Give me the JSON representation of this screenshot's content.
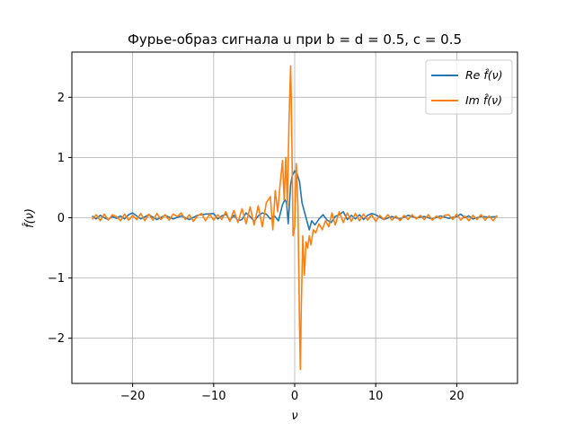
{
  "chart_data": {
    "type": "line",
    "title": "Фурье-образ сигнала u при b = d = 0.5, c = 0.5",
    "xlabel": "ν",
    "ylabel": "f̂(ν)",
    "xlim": [
      -27.5,
      27.5
    ],
    "ylim": [
      -2.75,
      2.75
    ],
    "xticks": [
      -20,
      -10,
      0,
      10,
      20
    ],
    "xtick_labels": [
      "−20",
      "−10",
      "0",
      "10",
      "20"
    ],
    "yticks": [
      -2,
      -1,
      0,
      1,
      2
    ],
    "ytick_labels": [
      "−2",
      "−1",
      "0",
      "1",
      "2"
    ],
    "grid": true,
    "legend_position": "top-right",
    "series": [
      {
        "name": "Re f̂(ν)",
        "color": "#1f77b4",
        "x": [
          -25,
          -24.5,
          -24,
          -23.5,
          -23,
          -22.5,
          -22,
          -21.5,
          -21,
          -20.5,
          -20,
          -19.5,
          -19,
          -18,
          -17,
          -16,
          -15,
          -14,
          -13,
          -12,
          -11,
          -10,
          -9.5,
          -9,
          -8.5,
          -8,
          -7.5,
          -7,
          -6.5,
          -6,
          -5.5,
          -5,
          -4.5,
          -4,
          -3.5,
          -3,
          -2.5,
          -2,
          -1.5,
          -1.2,
          -1,
          -0.8,
          -0.5,
          -0.3,
          0,
          0.3,
          0.6,
          0.9,
          1.2,
          1.5,
          1.8,
          2.1,
          2.5,
          3,
          3.5,
          4,
          4.5,
          5,
          5.5,
          6,
          6.5,
          7,
          7.5,
          8,
          8.5,
          9,
          9.5,
          10,
          11,
          12,
          13,
          14,
          15,
          16,
          17,
          18,
          19,
          20,
          20.5,
          21,
          21.5,
          22,
          23,
          24,
          25
        ],
        "y": [
          0.03,
          -0.02,
          0.04,
          0.0,
          -0.03,
          0.02,
          -0.01,
          0.03,
          -0.02,
          0.05,
          0.08,
          0.03,
          -0.02,
          0.05,
          -0.03,
          0.04,
          -0.02,
          0.03,
          -0.03,
          0.04,
          0.06,
          0.07,
          -0.02,
          0.03,
          0.06,
          -0.04,
          0.04,
          -0.05,
          -0.03,
          0.08,
          0.02,
          -0.06,
          0.03,
          0.08,
          0.06,
          -0.02,
          0.03,
          -0.05,
          0.22,
          0.3,
          0.25,
          -0.1,
          0.55,
          0.7,
          0.78,
          0.72,
          0.6,
          0.25,
          0.1,
          -0.05,
          -0.2,
          -0.05,
          -0.12,
          -0.02,
          0.05,
          -0.04,
          -0.08,
          0.02,
          0.05,
          0.1,
          -0.03,
          0.04,
          -0.02,
          0.05,
          -0.03,
          0.04,
          0.07,
          0.05,
          -0.03,
          0.02,
          -0.02,
          0.04,
          0.0,
          0.02,
          -0.02,
          0.03,
          -0.01,
          0.02,
          0.06,
          0.0,
          0.03,
          -0.02,
          0.02,
          0.01,
          0.02
        ]
      },
      {
        "name": "Im f̂(ν)",
        "color": "#ff7f0e",
        "x": [
          -25,
          -24.5,
          -24,
          -23.5,
          -23,
          -22.5,
          -22,
          -21.5,
          -21,
          -20.5,
          -20,
          -19.5,
          -19,
          -18.5,
          -18,
          -17.5,
          -17,
          -16.5,
          -16,
          -15.5,
          -15,
          -14.5,
          -14,
          -13.5,
          -13,
          -12.5,
          -12,
          -11.5,
          -11,
          -10.5,
          -10,
          -9.5,
          -9,
          -8.5,
          -8,
          -7.5,
          -7,
          -6.5,
          -6,
          -5.5,
          -5,
          -4.5,
          -4,
          -3.5,
          -3,
          -2.7,
          -2.4,
          -2.1,
          -1.8,
          -1.5,
          -1.3,
          -1.1,
          -0.9,
          -0.7,
          -0.5,
          -0.4,
          -0.2,
          0,
          0.2,
          0.4,
          0.6,
          0.7,
          0.8,
          1.0,
          1.2,
          1.4,
          1.6,
          1.8,
          2.0,
          2.3,
          2.6,
          3.0,
          3.4,
          3.8,
          4.2,
          4.6,
          5,
          5.5,
          6,
          6.5,
          7,
          7.5,
          8,
          8.5,
          9,
          9.5,
          10,
          10.5,
          11,
          11.5,
          12,
          12.5,
          13,
          13.5,
          14,
          14.5,
          15,
          15.5,
          16,
          16.5,
          17,
          17.5,
          18,
          18.5,
          19,
          19.5,
          20,
          20.5,
          21,
          21.5,
          22,
          22.5,
          23,
          23.5,
          24,
          24.5,
          25
        ],
        "y": [
          -0.03,
          0.05,
          -0.05,
          0.06,
          -0.04,
          0.05,
          0.02,
          -0.05,
          0.06,
          -0.04,
          0.04,
          -0.03,
          0.07,
          -0.05,
          0.06,
          -0.04,
          0.07,
          -0.03,
          0.05,
          -0.04,
          0.06,
          0.02,
          0.08,
          -0.03,
          0.05,
          -0.06,
          0.03,
          0.07,
          -0.05,
          0.06,
          -0.04,
          0.05,
          -0.03,
          0.1,
          -0.06,
          0.12,
          -0.08,
          0.15,
          -0.1,
          0.18,
          -0.12,
          0.2,
          -0.15,
          0.25,
          0.35,
          -0.2,
          0.45,
          0.1,
          0.55,
          0.95,
          0.3,
          1.0,
          0.2,
          1.6,
          2.52,
          1.8,
          -0.3,
          -0.15,
          0.9,
          0.2,
          -1.8,
          -2.52,
          -1.6,
          -0.3,
          -0.95,
          -0.4,
          -0.5,
          -0.3,
          -0.45,
          -0.2,
          -0.25,
          -0.1,
          -0.2,
          -0.05,
          -0.15,
          0.08,
          -0.12,
          0.1,
          -0.08,
          0.08,
          -0.06,
          0.07,
          -0.05,
          0.06,
          -0.04,
          0.05,
          -0.06,
          0.04,
          -0.03,
          0.05,
          -0.04,
          0.03,
          -0.05,
          0.04,
          -0.03,
          0.05,
          -0.02,
          0.04,
          -0.03,
          0.05,
          -0.04,
          0.03,
          -0.02,
          0.04,
          0.05,
          -0.03,
          0.06,
          -0.04,
          0.03,
          -0.05,
          0.04,
          -0.03,
          0.05,
          -0.04,
          0.03,
          -0.05,
          0.04
        ]
      }
    ]
  }
}
